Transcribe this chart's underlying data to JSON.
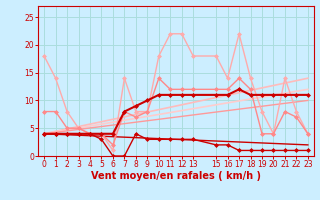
{
  "xlabel": "Vent moyen/en rafales ( km/h )",
  "bg_color": "#cceeff",
  "grid_color": "#aadddd",
  "xlim": [
    -0.5,
    23.5
  ],
  "ylim": [
    0,
    27
  ],
  "yticks": [
    0,
    5,
    10,
    15,
    20,
    25
  ],
  "xticks": [
    0,
    1,
    2,
    3,
    4,
    5,
    6,
    7,
    8,
    9,
    10,
    11,
    12,
    13,
    15,
    16,
    17,
    18,
    19,
    20,
    21,
    22,
    23
  ],
  "series": [
    {
      "x": [
        0,
        1,
        2,
        3,
        4,
        5,
        6,
        7,
        8,
        9,
        10,
        11,
        12,
        13,
        15,
        16,
        17,
        18,
        19,
        20,
        21,
        22,
        23
      ],
      "y": [
        18,
        14,
        8,
        5,
        4,
        4,
        1,
        14,
        8,
        8,
        18,
        22,
        22,
        18,
        18,
        14,
        22,
        14,
        8,
        4,
        14,
        8,
        4
      ],
      "color": "#ffaaaa",
      "lw": 1.0,
      "marker": "D",
      "ms": 2.0
    },
    {
      "x": [
        0,
        1,
        2,
        3,
        4,
        5,
        6,
        7,
        8,
        9,
        10,
        11,
        12,
        13,
        15,
        16,
        17,
        18,
        19,
        20,
        21,
        22,
        23
      ],
      "y": [
        8,
        8,
        5,
        5,
        4,
        4,
        2,
        8,
        7,
        8,
        14,
        12,
        12,
        12,
        12,
        12,
        14,
        12,
        4,
        4,
        8,
        7,
        4
      ],
      "color": "#ff8888",
      "lw": 1.0,
      "marker": "D",
      "ms": 2.0
    },
    {
      "x": [
        0,
        1,
        2,
        3,
        4,
        5,
        6,
        7,
        8,
        9,
        10,
        11,
        12,
        13,
        15,
        16,
        17,
        18,
        19,
        20,
        21,
        22,
        23
      ],
      "y": [
        4,
        4,
        4,
        4,
        4,
        4,
        4,
        8,
        9,
        10,
        11,
        11,
        11,
        11,
        11,
        11,
        12,
        11,
        11,
        11,
        11,
        11,
        11
      ],
      "color": "#cc0000",
      "lw": 1.5,
      "marker": "D",
      "ms": 2.0
    },
    {
      "x": [
        0,
        1,
        2,
        3,
        4,
        5,
        6,
        7,
        8,
        9,
        10,
        11,
        12,
        13,
        15,
        16,
        17,
        18,
        19,
        20,
        21,
        22,
        23
      ],
      "y": [
        4,
        4,
        4,
        4,
        4,
        3,
        0,
        0,
        4,
        3,
        3,
        3,
        3,
        3,
        2,
        2,
        1,
        1,
        1,
        1,
        1,
        1,
        1
      ],
      "color": "#cc0000",
      "lw": 1.0,
      "marker": "D",
      "ms": 2.0
    },
    {
      "x": [
        0,
        23
      ],
      "y": [
        4,
        14
      ],
      "color": "#ffbbbb",
      "lw": 1.2,
      "marker": null,
      "ms": 0
    },
    {
      "x": [
        0,
        23
      ],
      "y": [
        4,
        12
      ],
      "color": "#ffcccc",
      "lw": 1.2,
      "marker": null,
      "ms": 0
    },
    {
      "x": [
        0,
        23
      ],
      "y": [
        4,
        10
      ],
      "color": "#ff9999",
      "lw": 1.0,
      "marker": null,
      "ms": 0
    },
    {
      "x": [
        0,
        23
      ],
      "y": [
        4,
        2
      ],
      "color": "#cc0000",
      "lw": 1.0,
      "marker": null,
      "ms": 0
    }
  ],
  "xlabel_fontsize": 7,
  "tick_fontsize": 5.5
}
